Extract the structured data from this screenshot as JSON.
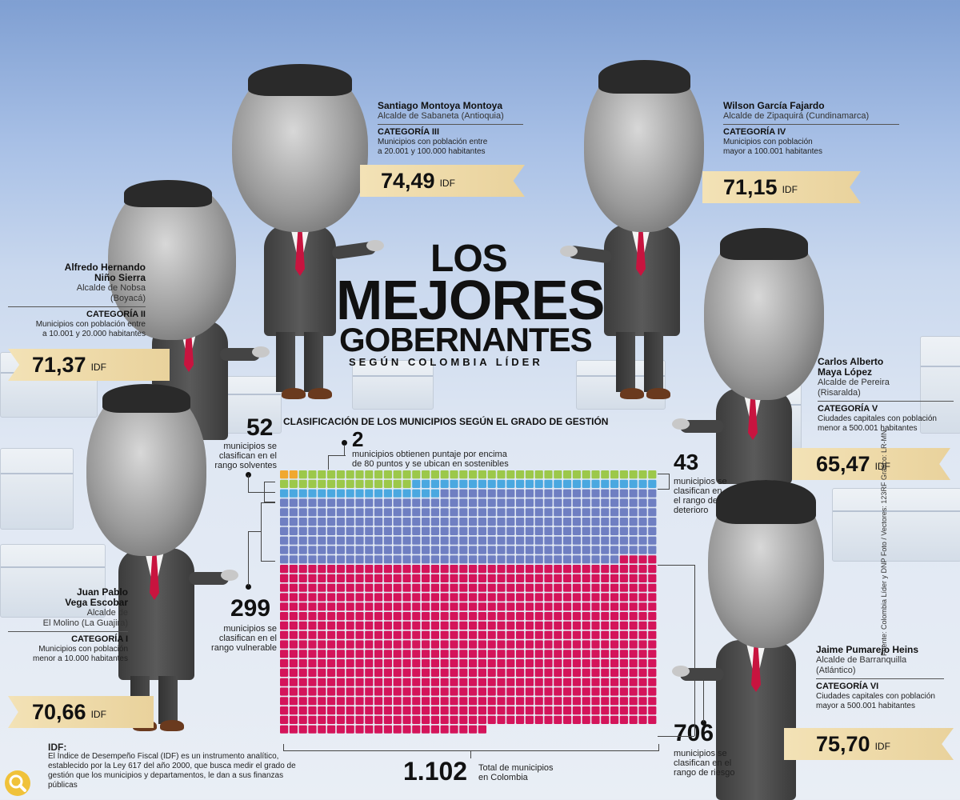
{
  "title": {
    "line1": "LOS",
    "line2": "MEJORES",
    "line3": "GOBERNANTES",
    "sub": "SEGÚN COLOMBIA LÍDER"
  },
  "mayors": {
    "santiago": {
      "name": "Santiago Montoya Montoya",
      "role": "Alcalde de Sabaneta (Antioquia)",
      "category": "CATEGORÍA III",
      "desc1": "Municipios con población entre",
      "desc2": "a 20.001 y 100.000 habitantes",
      "value": "74,49",
      "unit": "IDF"
    },
    "wilson": {
      "name": "Wilson García Fajardo",
      "role": "Alcalde de Zipaquirá (Cundinamarca)",
      "category": "CATEGORÍA IV",
      "desc1": "Municipios con población",
      "desc2": "mayor a 100.001 habitantes",
      "value": "71,15",
      "unit": "IDF"
    },
    "alfredo": {
      "name1": "Alfredo Hernando",
      "name2": "Niño Sierra",
      "role1": "Alcalde de Nobsa",
      "role2": "(Boyacá)",
      "category": "CATEGORÍA II",
      "desc1": "Municipios con población entre",
      "desc2": "a 10.001 y 20.000 habitantes",
      "value": "71,37",
      "unit": "IDF"
    },
    "carlos": {
      "name1": "Carlos Alberto",
      "name2": "Maya López",
      "role1": "Alcalde de Pereira",
      "role2": "(Risaralda)",
      "category": "CATEGORÍA V",
      "desc1": "Ciudades capitales con población",
      "desc2": "menor a 500.001 habitantes",
      "value": "65,47",
      "unit": "IDF"
    },
    "juan": {
      "name1": "Juan Pablo",
      "name2": "Vega Escobar",
      "role1": "Alcalde de",
      "role2": "El Molino (La Guajira)",
      "category": "CATEGORÍA I",
      "desc1": "Municipios con población",
      "desc2": "menor a 10.000 habitantes",
      "value": "70,66",
      "unit": "IDF"
    },
    "jaime": {
      "name": "Jaime Pumarejo Heins",
      "role1": "Alcalde de Barranquilla",
      "role2": "(Atlántico)",
      "category": "CATEGORÍA VI",
      "desc1": "Ciudades capitales con población",
      "desc2": "mayor a 500.001 habitantes",
      "value": "75,70",
      "unit": "IDF"
    }
  },
  "annotations": {
    "solventes": {
      "num": "52",
      "t1": "municipios se",
      "t2": "clasifican en el",
      "t3": "rango solventes"
    },
    "sostenibles": {
      "num": "2",
      "t1": "municipios obtienen puntaje por encima",
      "t2": "de 80 puntos y se ubican en sostenibles"
    },
    "deterioro": {
      "num": "43",
      "t1": "municipios se",
      "t2": "clasifican en",
      "t3": "el rango de",
      "t4": "deterioro"
    },
    "vulnerable": {
      "num": "299",
      "t1": "municipios se",
      "t2": "clasifican en el",
      "t3": "rango vulnerable"
    },
    "riesgo": {
      "num": "706",
      "t1": "municipios se",
      "t2": "clasifican en el",
      "t3": "rango de riesgo"
    },
    "total": {
      "num": "1.102",
      "t1": "Total de municipios",
      "t2": "en Colombia"
    }
  },
  "idf": {
    "label": "IDF:",
    "l1": "El Índice de Desempeño Fiscal (IDF) es un instrumento analítico,",
    "l2": "establecido por la Ley 617 del año 2000, que busca medir el grado de",
    "l3": "gestión que los municipios y departamentos, le dan a sus finanzas públicas"
  },
  "source": "Fuente: Colombia Líder y DNP Foto / Vectores: 123RF  Gráfico: LR-MN",
  "chart_data": {
    "type": "waffle",
    "title": "CLASIFICACIÓN DE LOS MUNICIPIOS SEGÚN EL GRADO DE GESTIÓN",
    "total": 1102,
    "series": [
      {
        "name": "sostenibles",
        "value": 2,
        "color": "#f0a830"
      },
      {
        "name": "solventes",
        "value": 52,
        "color": "#9cc84a"
      },
      {
        "name": "deterioro",
        "value": 43,
        "color": "#4aa8e0"
      },
      {
        "name": "vulnerable",
        "value": 299,
        "color": "#6f7fc2"
      },
      {
        "name": "riesgo",
        "value": 706,
        "color": "#d4145a"
      }
    ],
    "colors": {
      "grid_bg": "#eef1f6"
    }
  }
}
